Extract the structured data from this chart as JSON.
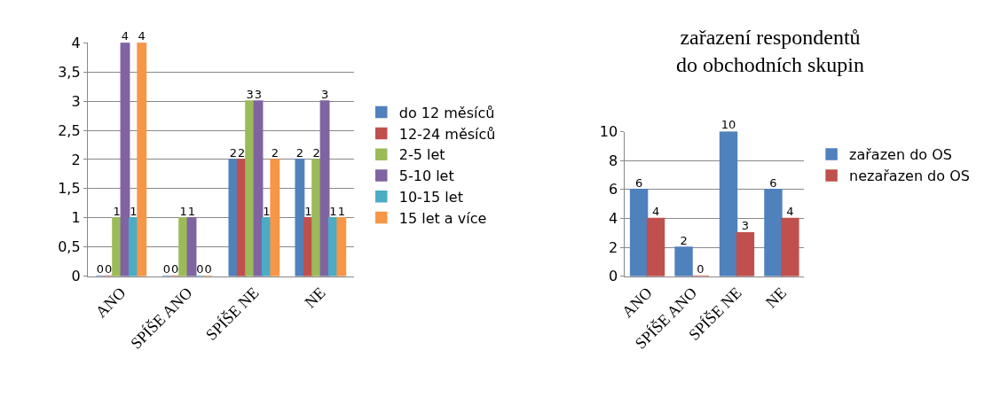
{
  "chart_data": [
    {
      "type": "bar",
      "categories": [
        "ANO",
        "SPÍŠE ANO",
        "SPÍŠE NE",
        "NE"
      ],
      "series": [
        {
          "name": "do 12 měsíců",
          "color": "#4f81bd",
          "values": [
            0,
            0,
            2,
            2
          ]
        },
        {
          "name": "12-24 měsíců",
          "color": "#c0504d",
          "values": [
            0,
            0,
            2,
            1
          ]
        },
        {
          "name": "2-5 let",
          "color": "#9bbb59",
          "values": [
            1,
            1,
            3,
            2
          ]
        },
        {
          "name": "5-10 let",
          "color": "#8064a2",
          "values": [
            4,
            1,
            3,
            3
          ]
        },
        {
          "name": "10-15 let",
          "color": "#4bacc6",
          "values": [
            1,
            0,
            1,
            1
          ]
        },
        {
          "name": "15 let a více",
          "color": "#f79646",
          "values": [
            4,
            0,
            2,
            1
          ]
        }
      ],
      "ylim": [
        0,
        4
      ],
      "yticks": [
        0,
        {
          "value": 0.5,
          "label": "0,5"
        },
        1,
        {
          "value": 1.5,
          "label": "1,5"
        },
        2,
        {
          "value": 2.5,
          "label": "2,5"
        },
        3,
        {
          "value": 3.5,
          "label": "3,5"
        },
        4
      ],
      "grid": "y",
      "legend": "right",
      "data_labels": true
    },
    {
      "type": "bar",
      "title": "zařazení respondentů do obchodních skupin",
      "categories": [
        "ANO",
        "SPÍŠE ANO",
        "SPÍŠE NE",
        "NE"
      ],
      "series": [
        {
          "name": "zařazen do OS",
          "color": "#4f81bd",
          "values": [
            6,
            2,
            10,
            6
          ]
        },
        {
          "name": "nezařazen do OS",
          "color": "#c0504d",
          "values": [
            4,
            0,
            3,
            4
          ]
        }
      ],
      "ylim": [
        0,
        10
      ],
      "yticks": [
        0,
        2,
        4,
        6,
        8,
        10
      ],
      "grid": "y",
      "legend": "right",
      "data_labels": true
    }
  ]
}
